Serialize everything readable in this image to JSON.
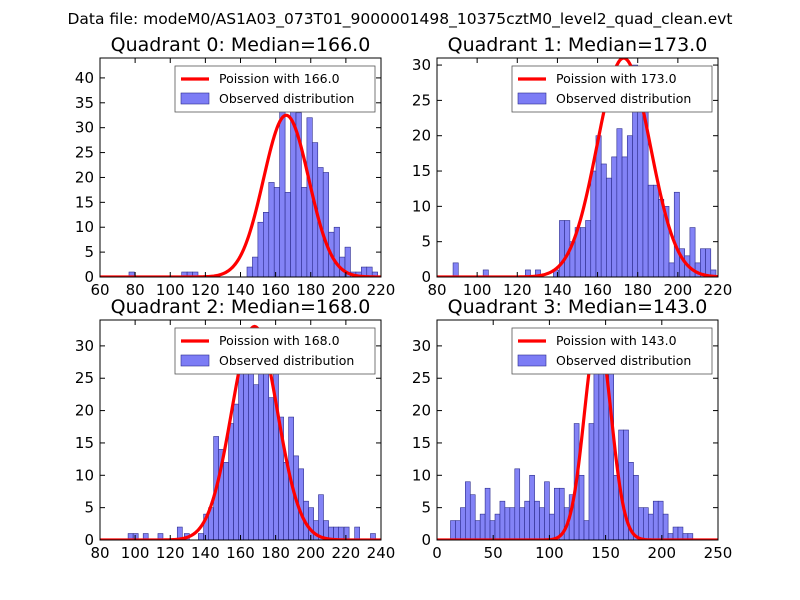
{
  "suptitle": "Data file: modeM0/AS1A03_073T01_9000001498_10375cztM0_level2_quad_clean.evt",
  "colors": {
    "bar_fill": "#7c7cf5",
    "bar_edge": "#2c2c8c",
    "curve": "#ff0000",
    "background": "#ffffff"
  },
  "chart_data": [
    {
      "type": "bar",
      "title": "Quadrant 0: Median=166.0",
      "legend": {
        "placement": "top-right",
        "curve_label": "Poission with 166.0",
        "hist_label": "Observed distribution"
      },
      "xlim": [
        60,
        220
      ],
      "ylim": [
        0,
        44
      ],
      "xticks": [
        60,
        80,
        100,
        120,
        140,
        160,
        180,
        200,
        220
      ],
      "yticks": [
        0,
        5,
        10,
        15,
        20,
        25,
        30,
        35,
        40
      ],
      "bin_width": 3.1,
      "bins": [
        [
          76.5,
          1
        ],
        [
          106.5,
          1
        ],
        [
          109.6,
          1
        ],
        [
          112.7,
          1
        ],
        [
          143.7,
          2
        ],
        [
          146.8,
          4
        ],
        [
          149.9,
          11
        ],
        [
          153.0,
          13
        ],
        [
          156.1,
          19
        ],
        [
          159.2,
          18
        ],
        [
          162.3,
          36
        ],
        [
          165.4,
          17
        ],
        [
          168.5,
          39
        ],
        [
          171.6,
          33
        ],
        [
          174.7,
          18
        ],
        [
          177.8,
          32
        ],
        [
          180.9,
          27
        ],
        [
          184.0,
          22
        ],
        [
          187.1,
          21
        ],
        [
          190.2,
          9
        ],
        [
          193.3,
          10
        ],
        [
          196.4,
          4
        ],
        [
          199.5,
          6
        ],
        [
          202.6,
          1
        ],
        [
          205.7,
          1
        ],
        [
          208.8,
          2
        ],
        [
          211.9,
          2
        ],
        [
          215.0,
          1
        ]
      ],
      "curve": {
        "mean": 166.0,
        "peak": 32.5
      }
    },
    {
      "type": "bar",
      "title": "Quadrant 1: Median=173.0",
      "legend": {
        "placement": "top-right",
        "curve_label": "Poission with 173.0",
        "hist_label": "Observed distribution"
      },
      "xlim": [
        80,
        220
      ],
      "ylim": [
        0,
        31
      ],
      "xticks": [
        80,
        100,
        120,
        140,
        160,
        180,
        200,
        220
      ],
      "yticks": [
        0,
        5,
        10,
        15,
        20,
        25,
        30
      ],
      "bin_width": 2.6,
      "bins": [
        [
          88.0,
          2
        ],
        [
          103.0,
          1
        ],
        [
          124.0,
          1
        ],
        [
          129.0,
          1
        ],
        [
          138.0,
          1
        ],
        [
          141.0,
          8
        ],
        [
          143.6,
          8
        ],
        [
          146.2,
          5
        ],
        [
          148.8,
          7
        ],
        [
          151.4,
          7
        ],
        [
          154.0,
          8
        ],
        [
          156.6,
          15
        ],
        [
          159.2,
          20
        ],
        [
          161.8,
          16
        ],
        [
          164.4,
          14
        ],
        [
          167.0,
          17
        ],
        [
          169.6,
          21
        ],
        [
          172.2,
          17
        ],
        [
          174.8,
          20
        ],
        [
          177.4,
          30
        ],
        [
          180.0,
          27
        ],
        [
          182.6,
          26
        ],
        [
          185.2,
          13
        ],
        [
          187.8,
          13
        ],
        [
          190.4,
          11
        ],
        [
          193.0,
          10
        ],
        [
          195.6,
          2
        ],
        [
          198.2,
          12
        ],
        [
          200.8,
          4
        ],
        [
          203.4,
          3
        ],
        [
          206.0,
          7
        ],
        [
          208.6,
          2
        ],
        [
          211.2,
          4
        ],
        [
          213.8,
          4
        ],
        [
          216.4,
          1
        ]
      ],
      "curve": {
        "mean": 173.0,
        "peak": 31.0
      }
    },
    {
      "type": "bar",
      "title": "Quadrant 2: Median=168.0",
      "legend": {
        "placement": "top-right",
        "curve_label": "Poission with 168.0",
        "hist_label": "Observed distribution"
      },
      "xlim": [
        80,
        240
      ],
      "ylim": [
        0,
        34
      ],
      "xticks": [
        80,
        100,
        120,
        140,
        160,
        180,
        200,
        220,
        240
      ],
      "yticks": [
        0,
        5,
        10,
        15,
        20,
        25,
        30
      ],
      "bin_width": 2.85,
      "bins": [
        [
          96.0,
          1
        ],
        [
          98.9,
          1
        ],
        [
          104.6,
          1
        ],
        [
          113.0,
          1
        ],
        [
          124.0,
          2
        ],
        [
          128.0,
          1
        ],
        [
          136.0,
          1
        ],
        [
          139.0,
          4
        ],
        [
          141.8,
          5
        ],
        [
          144.7,
          16
        ],
        [
          147.5,
          14
        ],
        [
          150.4,
          12
        ],
        [
          153.2,
          18
        ],
        [
          156.1,
          21
        ],
        [
          158.9,
          26
        ],
        [
          161.8,
          31
        ],
        [
          164.6,
          28
        ],
        [
          167.5,
          24
        ],
        [
          170.3,
          30
        ],
        [
          173.2,
          28
        ],
        [
          176.0,
          22
        ],
        [
          178.8,
          27
        ],
        [
          181.7,
          19
        ],
        [
          184.5,
          12
        ],
        [
          187.4,
          19
        ],
        [
          190.2,
          13
        ],
        [
          193.1,
          11
        ],
        [
          195.9,
          6
        ],
        [
          198.8,
          5
        ],
        [
          201.6,
          3
        ],
        [
          204.4,
          7
        ],
        [
          207.3,
          3
        ],
        [
          210.1,
          2
        ],
        [
          213.0,
          2
        ],
        [
          215.8,
          2
        ],
        [
          219.0,
          2
        ],
        [
          225.0,
          2
        ],
        [
          234.0,
          1
        ]
      ],
      "curve": {
        "mean": 168.0,
        "peak": 33.0
      }
    },
    {
      "type": "bar",
      "title": "Quadrant 3: Median=143.0",
      "legend": {
        "placement": "top-right",
        "curve_label": "Poission with 143.0",
        "hist_label": "Observed distribution"
      },
      "xlim": [
        0,
        250
      ],
      "ylim": [
        0,
        34
      ],
      "xticks": [
        0,
        50,
        100,
        150,
        200,
        250
      ],
      "yticks": [
        0,
        5,
        10,
        15,
        20,
        25,
        30
      ],
      "bin_width": 4.4,
      "bins": [
        [
          12.0,
          3
        ],
        [
          16.4,
          3
        ],
        [
          20.8,
          5
        ],
        [
          25.2,
          9
        ],
        [
          29.6,
          7
        ],
        [
          34.0,
          3
        ],
        [
          38.4,
          4
        ],
        [
          42.8,
          8
        ],
        [
          47.2,
          3
        ],
        [
          51.6,
          4
        ],
        [
          56.0,
          6
        ],
        [
          60.4,
          5
        ],
        [
          64.8,
          5
        ],
        [
          69.2,
          11
        ],
        [
          73.6,
          5
        ],
        [
          78.0,
          6
        ],
        [
          82.4,
          10
        ],
        [
          86.8,
          6
        ],
        [
          91.2,
          5
        ],
        [
          95.6,
          9
        ],
        [
          100.0,
          4
        ],
        [
          104.4,
          8
        ],
        [
          108.8,
          8
        ],
        [
          113.2,
          5
        ],
        [
          117.6,
          7
        ],
        [
          122.0,
          18
        ],
        [
          126.4,
          10
        ],
        [
          130.8,
          3
        ],
        [
          135.2,
          18
        ],
        [
          139.6,
          27
        ],
        [
          144.0,
          32
        ],
        [
          148.4,
          30
        ],
        [
          152.8,
          28
        ],
        [
          157.2,
          10
        ],
        [
          161.6,
          17
        ],
        [
          166.0,
          17
        ],
        [
          170.4,
          12
        ],
        [
          174.8,
          10
        ],
        [
          179.2,
          5
        ],
        [
          183.6,
          5
        ],
        [
          188.0,
          4
        ],
        [
          192.4,
          6
        ],
        [
          196.8,
          6
        ],
        [
          201.2,
          4
        ],
        [
          205.6,
          1
        ],
        [
          210.0,
          2
        ],
        [
          214.4,
          2
        ],
        [
          218.8,
          1
        ],
        [
          223.2,
          1
        ]
      ],
      "curve": {
        "mean": 143.0,
        "peak": 32.0
      }
    }
  ]
}
